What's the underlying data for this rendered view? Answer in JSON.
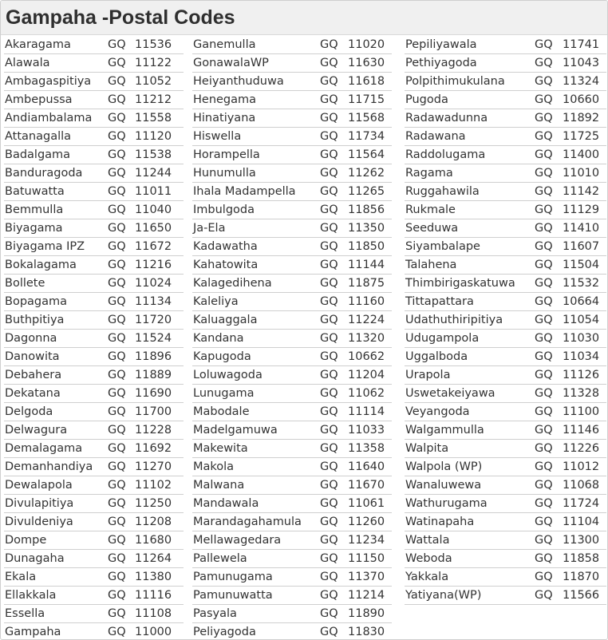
{
  "title": "Gampaha -Postal Codes",
  "columns": [
    [
      [
        "Akaragama",
        "GQ",
        "11536"
      ],
      [
        "Alawala",
        "GQ",
        "11122"
      ],
      [
        "Ambagaspitiya",
        "GQ",
        "11052"
      ],
      [
        "Ambepussa",
        "GQ",
        "11212"
      ],
      [
        "Andiambalama",
        "GQ",
        "11558"
      ],
      [
        "Attanagalla",
        "GQ",
        "11120"
      ],
      [
        "Badalgama",
        "GQ",
        "11538"
      ],
      [
        "Banduragoda",
        "GQ",
        "11244"
      ],
      [
        "Batuwatta",
        "GQ",
        "11011"
      ],
      [
        "Bemmulla",
        "GQ",
        "11040"
      ],
      [
        "Biyagama",
        "GQ",
        "11650"
      ],
      [
        "Biyagama IPZ",
        "GQ",
        "11672"
      ],
      [
        "Bokalagama",
        "GQ",
        "11216"
      ],
      [
        "Bollete",
        "GQ",
        "11024"
      ],
      [
        "Bopagama",
        "GQ",
        "11134"
      ],
      [
        "Buthpitiya",
        "GQ",
        "11720"
      ],
      [
        "Dagonna",
        "GQ",
        "11524"
      ],
      [
        "Danowita",
        "GQ",
        "11896"
      ],
      [
        "Debahera",
        "GQ",
        "11889"
      ],
      [
        "Dekatana",
        "GQ",
        "11690"
      ],
      [
        "Delgoda",
        "GQ",
        "11700"
      ],
      [
        "Delwagura",
        "GQ",
        "11228"
      ],
      [
        "Demalagama",
        "GQ",
        "11692"
      ],
      [
        "Demanhandiya",
        "GQ",
        "11270"
      ],
      [
        "Dewalapola",
        "GQ",
        "11102"
      ],
      [
        "Divulapitiya",
        "GQ",
        "11250"
      ],
      [
        "Divuldeniya",
        "GQ",
        "11208"
      ],
      [
        "Dompe",
        "GQ",
        "11680"
      ],
      [
        "Dunagaha",
        "GQ",
        "11264"
      ],
      [
        "Ekala",
        "GQ",
        "11380"
      ],
      [
        "Ellakkala",
        "GQ",
        "11116"
      ],
      [
        "Essella",
        "GQ",
        "11108"
      ],
      [
        "Gampaha",
        "GQ",
        "11000"
      ]
    ],
    [
      [
        "Ganemulla",
        "GQ",
        "11020"
      ],
      [
        "GonawalaWP",
        "GQ",
        "11630"
      ],
      [
        "Heiyanthuduwa",
        "GQ",
        "11618"
      ],
      [
        "Henegama",
        "GQ",
        "11715"
      ],
      [
        "Hinatiyana",
        "GQ",
        "11568"
      ],
      [
        "Hiswella",
        "GQ",
        "11734"
      ],
      [
        "Horampella",
        "GQ",
        "11564"
      ],
      [
        "Hunumulla",
        "GQ",
        "11262"
      ],
      [
        "Ihala Madampella",
        "GQ",
        "11265"
      ],
      [
        "Imbulgoda",
        "GQ",
        "11856"
      ],
      [
        "Ja-Ela",
        "GQ",
        "11350"
      ],
      [
        "Kadawatha",
        "GQ",
        "11850"
      ],
      [
        "Kahatowita",
        "GQ",
        "11144"
      ],
      [
        "Kalagedihena",
        "GQ",
        "11875"
      ],
      [
        "Kaleliya",
        "GQ",
        "11160"
      ],
      [
        "Kaluaggala",
        "GQ",
        "11224"
      ],
      [
        "Kandana",
        "GQ",
        "11320"
      ],
      [
        "Kapugoda",
        "GQ",
        "10662"
      ],
      [
        "Loluwagoda",
        "GQ",
        "11204"
      ],
      [
        "Lunugama",
        "GQ",
        "11062"
      ],
      [
        "Mabodale",
        "GQ",
        "11114"
      ],
      [
        "Madelgamuwa",
        "GQ",
        "11033"
      ],
      [
        "Makewita",
        "GQ",
        "11358"
      ],
      [
        "Makola",
        "GQ",
        "11640"
      ],
      [
        "Malwana",
        "GQ",
        "11670"
      ],
      [
        "Mandawala",
        "GQ",
        "11061"
      ],
      [
        "Marandagahamula",
        "GQ",
        "11260"
      ],
      [
        "Mellawagedara",
        "GQ",
        "11234"
      ],
      [
        "Pallewela",
        "GQ",
        "11150"
      ],
      [
        "Pamunugama",
        "GQ",
        "11370"
      ],
      [
        "Pamunuwatta",
        "GQ",
        "11214"
      ],
      [
        "Pasyala",
        "GQ",
        "11890"
      ],
      [
        "Peliyagoda",
        "GQ",
        "11830"
      ]
    ],
    [
      [
        "Pepiliyawala",
        "GQ",
        "11741"
      ],
      [
        "Pethiyagoda",
        "GQ",
        "11043"
      ],
      [
        "Polpithimukulana",
        "GQ",
        "11324"
      ],
      [
        "Pugoda",
        "GQ",
        "10660"
      ],
      [
        "Radawadunna",
        "GQ",
        "11892"
      ],
      [
        "Radawana",
        "GQ",
        "11725"
      ],
      [
        "Raddolugama",
        "GQ",
        "11400"
      ],
      [
        "Ragama",
        "GQ",
        "11010"
      ],
      [
        "Ruggahawila",
        "GQ",
        "11142"
      ],
      [
        "Rukmale",
        "GQ",
        "11129"
      ],
      [
        "Seeduwa",
        "GQ",
        "11410"
      ],
      [
        "Siyambalape",
        "GQ",
        "11607"
      ],
      [
        "Talahena",
        "GQ",
        "11504"
      ],
      [
        "Thimbirigaskatuwa",
        "GQ",
        "11532"
      ],
      [
        "Tittapattara",
        "GQ",
        "10664"
      ],
      [
        "Udathuthiripitiya",
        "GQ",
        "11054"
      ],
      [
        "Udugampola",
        "GQ",
        "11030"
      ],
      [
        "Uggalboda",
        "GQ",
        "11034"
      ],
      [
        "Urapola",
        "GQ",
        "11126"
      ],
      [
        "Uswetakeiyawa",
        "GQ",
        "11328"
      ],
      [
        "Veyangoda",
        "GQ",
        "11100"
      ],
      [
        "Walgammulla",
        "GQ",
        "11146"
      ],
      [
        "Walpita",
        "GQ",
        "11226"
      ],
      [
        "Walpola (WP)",
        "GQ",
        "11012"
      ],
      [
        "Wanaluwewa",
        "GQ",
        "11068"
      ],
      [
        "Wathurugama",
        "GQ",
        "11724"
      ],
      [
        "Watinapaha",
        "GQ",
        "11104"
      ],
      [
        "Wattala",
        "GQ",
        "11300"
      ],
      [
        "Weboda",
        "GQ",
        "11858"
      ],
      [
        "Yakkala",
        "GQ",
        "11870"
      ],
      [
        "Yatiyana(WP)",
        "GQ",
        "11566"
      ]
    ]
  ]
}
